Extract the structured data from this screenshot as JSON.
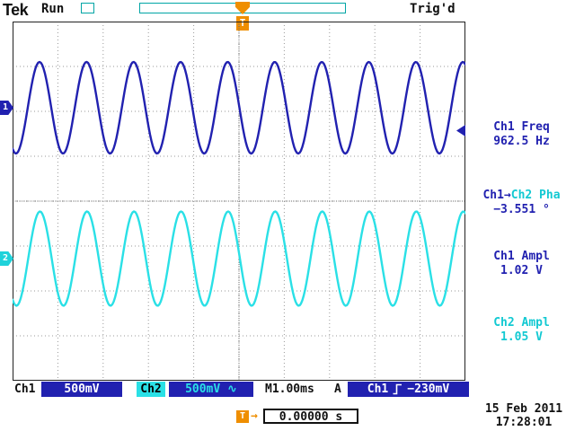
{
  "header": {
    "logo": "Tek",
    "acq_state": "Run",
    "trig_status": "Trig'd",
    "trigger_marker_label": "T"
  },
  "channel_markers": {
    "ch1": "1",
    "ch2": "2"
  },
  "measurements": {
    "freq": {
      "label": "Ch1 Freq",
      "value": "962.5 Hz"
    },
    "phase": {
      "label_src": "Ch1→",
      "label_ref": "Ch2 Pha",
      "value": "−3.551 °"
    },
    "ampl1": {
      "label": "Ch1 Ampl",
      "value": "1.02 V"
    },
    "ampl2": {
      "label": "Ch2 Ampl",
      "value": "1.05 V"
    }
  },
  "status_bar": {
    "ch1_label": "Ch1",
    "ch1_scale": "500mV",
    "ch2_label": "Ch2",
    "ch2_scale": "500mV",
    "ch2_coupling_icon": "∿",
    "timebase": "M1.00ms",
    "trig_mode": "A",
    "trig_source": "Ch1",
    "trig_level": "−230mV"
  },
  "cursor_bar": {
    "marker": "T",
    "arrow": "→",
    "horizontal_pos": "0.00000 s"
  },
  "datetime": {
    "date": "15 Feb 2011",
    "time": "17:28:01"
  },
  "colors": {
    "ch1": "#2121b0",
    "ch2": "#2ae0e6",
    "orange": "#ef8e00",
    "teal_box": "#00a5a5"
  },
  "chart_data": {
    "type": "line",
    "title": "Oscilloscope display: two sine waves",
    "time_per_div_ms": 1.0,
    "volts_per_div_v": 0.5,
    "divisions": {
      "x": 10,
      "y": 8
    },
    "series": [
      {
        "name": "Ch1",
        "color": "#2121b0",
        "freq_hz": 962.5,
        "ampl_vpp_v": 1.02,
        "center_div_from_top": 1.92,
        "phase_deg": -116
      },
      {
        "name": "Ch2",
        "color": "#2ae0e6",
        "freq_hz": 962.5,
        "ampl_vpp_v": 1.05,
        "center_div_from_top": 5.28,
        "phase_deg": -119.55
      }
    ],
    "measured": {
      "ch1_freq_hz": 962.5,
      "ch1_to_ch2_phase_deg": -3.551,
      "ch1_ampl_vpp_v": 1.02,
      "ch2_ampl_vpp_v": 1.05,
      "trigger_level_mv": -230,
      "horizontal_position_s": 0.0
    }
  }
}
